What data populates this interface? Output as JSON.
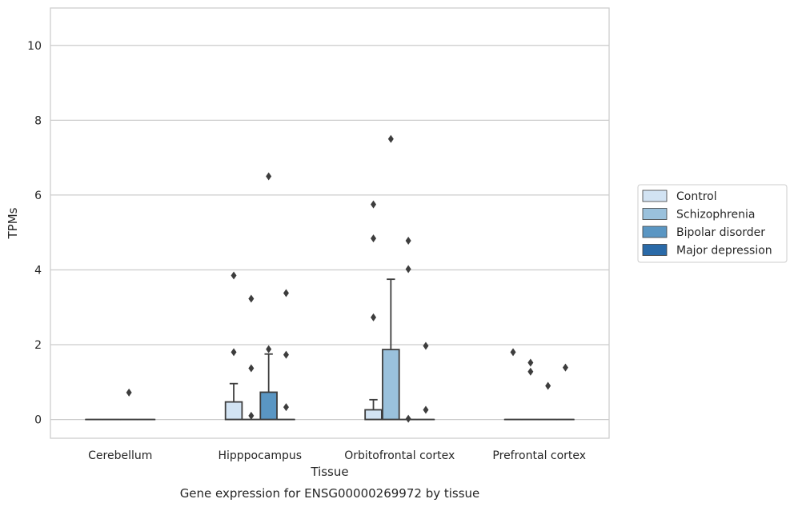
{
  "chart_data": {
    "type": "box",
    "title": "Gene expression for ENSG00000269972 by tissue",
    "xlabel": "Tissue",
    "ylabel": "TPMs",
    "ylim": [
      -0.5,
      11
    ],
    "yticks": [
      0,
      2,
      4,
      6,
      8,
      10
    ],
    "grid": true,
    "legend_position": "right",
    "categories": [
      "Cerebellum",
      "Hipppocampus",
      "Orbitofrontal cortex",
      "Prefrontal cortex"
    ],
    "series": [
      {
        "name": "Control",
        "color": "#d2e3f3",
        "boxes": [
          {
            "q1": 0,
            "median": 0,
            "q3": 0,
            "whisker_low": 0,
            "whisker_high": 0,
            "outliers": []
          },
          {
            "q1": 0,
            "median": 0,
            "q3": 0.47,
            "whisker_low": 0,
            "whisker_high": 0.96,
            "outliers": [
              1.8,
              3.85
            ]
          },
          {
            "q1": 0,
            "median": 0,
            "q3": 0.26,
            "whisker_low": 0,
            "whisker_high": 0.53,
            "outliers": [
              2.73,
              4.84,
              5.75
            ]
          },
          {
            "q1": 0,
            "median": 0,
            "q3": 0,
            "whisker_low": 0,
            "whisker_high": 0,
            "outliers": [
              1.8
            ]
          }
        ]
      },
      {
        "name": "Schizophrenia",
        "color": "#9ac1dc",
        "boxes": [
          {
            "q1": 0,
            "median": 0,
            "q3": 0,
            "whisker_low": 0,
            "whisker_high": 0,
            "outliers": []
          },
          {
            "q1": 0,
            "median": 0,
            "q3": 0,
            "whisker_low": 0,
            "whisker_high": 0,
            "outliers": [
              0.1,
              1.37,
              3.23
            ]
          },
          {
            "q1": 0,
            "median": 0,
            "q3": 1.87,
            "whisker_low": 0,
            "whisker_high": 3.75,
            "outliers": [
              7.5
            ]
          },
          {
            "q1": 0,
            "median": 0,
            "q3": 0,
            "whisker_low": 0,
            "whisker_high": 0,
            "outliers": [
              1.28,
              1.52
            ]
          }
        ]
      },
      {
        "name": "Bipolar disorder",
        "color": "#5a96c3",
        "boxes": [
          {
            "q1": 0,
            "median": 0,
            "q3": 0,
            "whisker_low": 0,
            "whisker_high": 0,
            "outliers": [
              0.72
            ]
          },
          {
            "q1": 0,
            "median": 0,
            "q3": 0.73,
            "whisker_low": 0,
            "whisker_high": 1.75,
            "outliers": [
              1.88,
              6.5
            ]
          },
          {
            "q1": 0,
            "median": 0,
            "q3": 0,
            "whisker_low": 0,
            "whisker_high": 0,
            "outliers": [
              0.02,
              4.02,
              4.78
            ]
          },
          {
            "q1": 0,
            "median": 0,
            "q3": 0,
            "whisker_low": 0,
            "whisker_high": 0,
            "outliers": [
              0.9
            ]
          }
        ]
      },
      {
        "name": "Major depression",
        "color": "#2a6aa8",
        "boxes": [
          {
            "q1": 0,
            "median": 0,
            "q3": 0,
            "whisker_low": 0,
            "whisker_high": 0,
            "outliers": []
          },
          {
            "q1": 0,
            "median": 0,
            "q3": 0,
            "whisker_low": 0,
            "whisker_high": 0,
            "outliers": [
              0.33,
              1.73,
              3.38
            ]
          },
          {
            "q1": 0,
            "median": 0,
            "q3": 0,
            "whisker_low": 0,
            "whisker_high": 0,
            "outliers": [
              0.26,
              1.97
            ]
          },
          {
            "q1": 0,
            "median": 0,
            "q3": 0,
            "whisker_low": 0,
            "whisker_high": 0,
            "outliers": [
              1.39
            ]
          }
        ]
      }
    ]
  }
}
